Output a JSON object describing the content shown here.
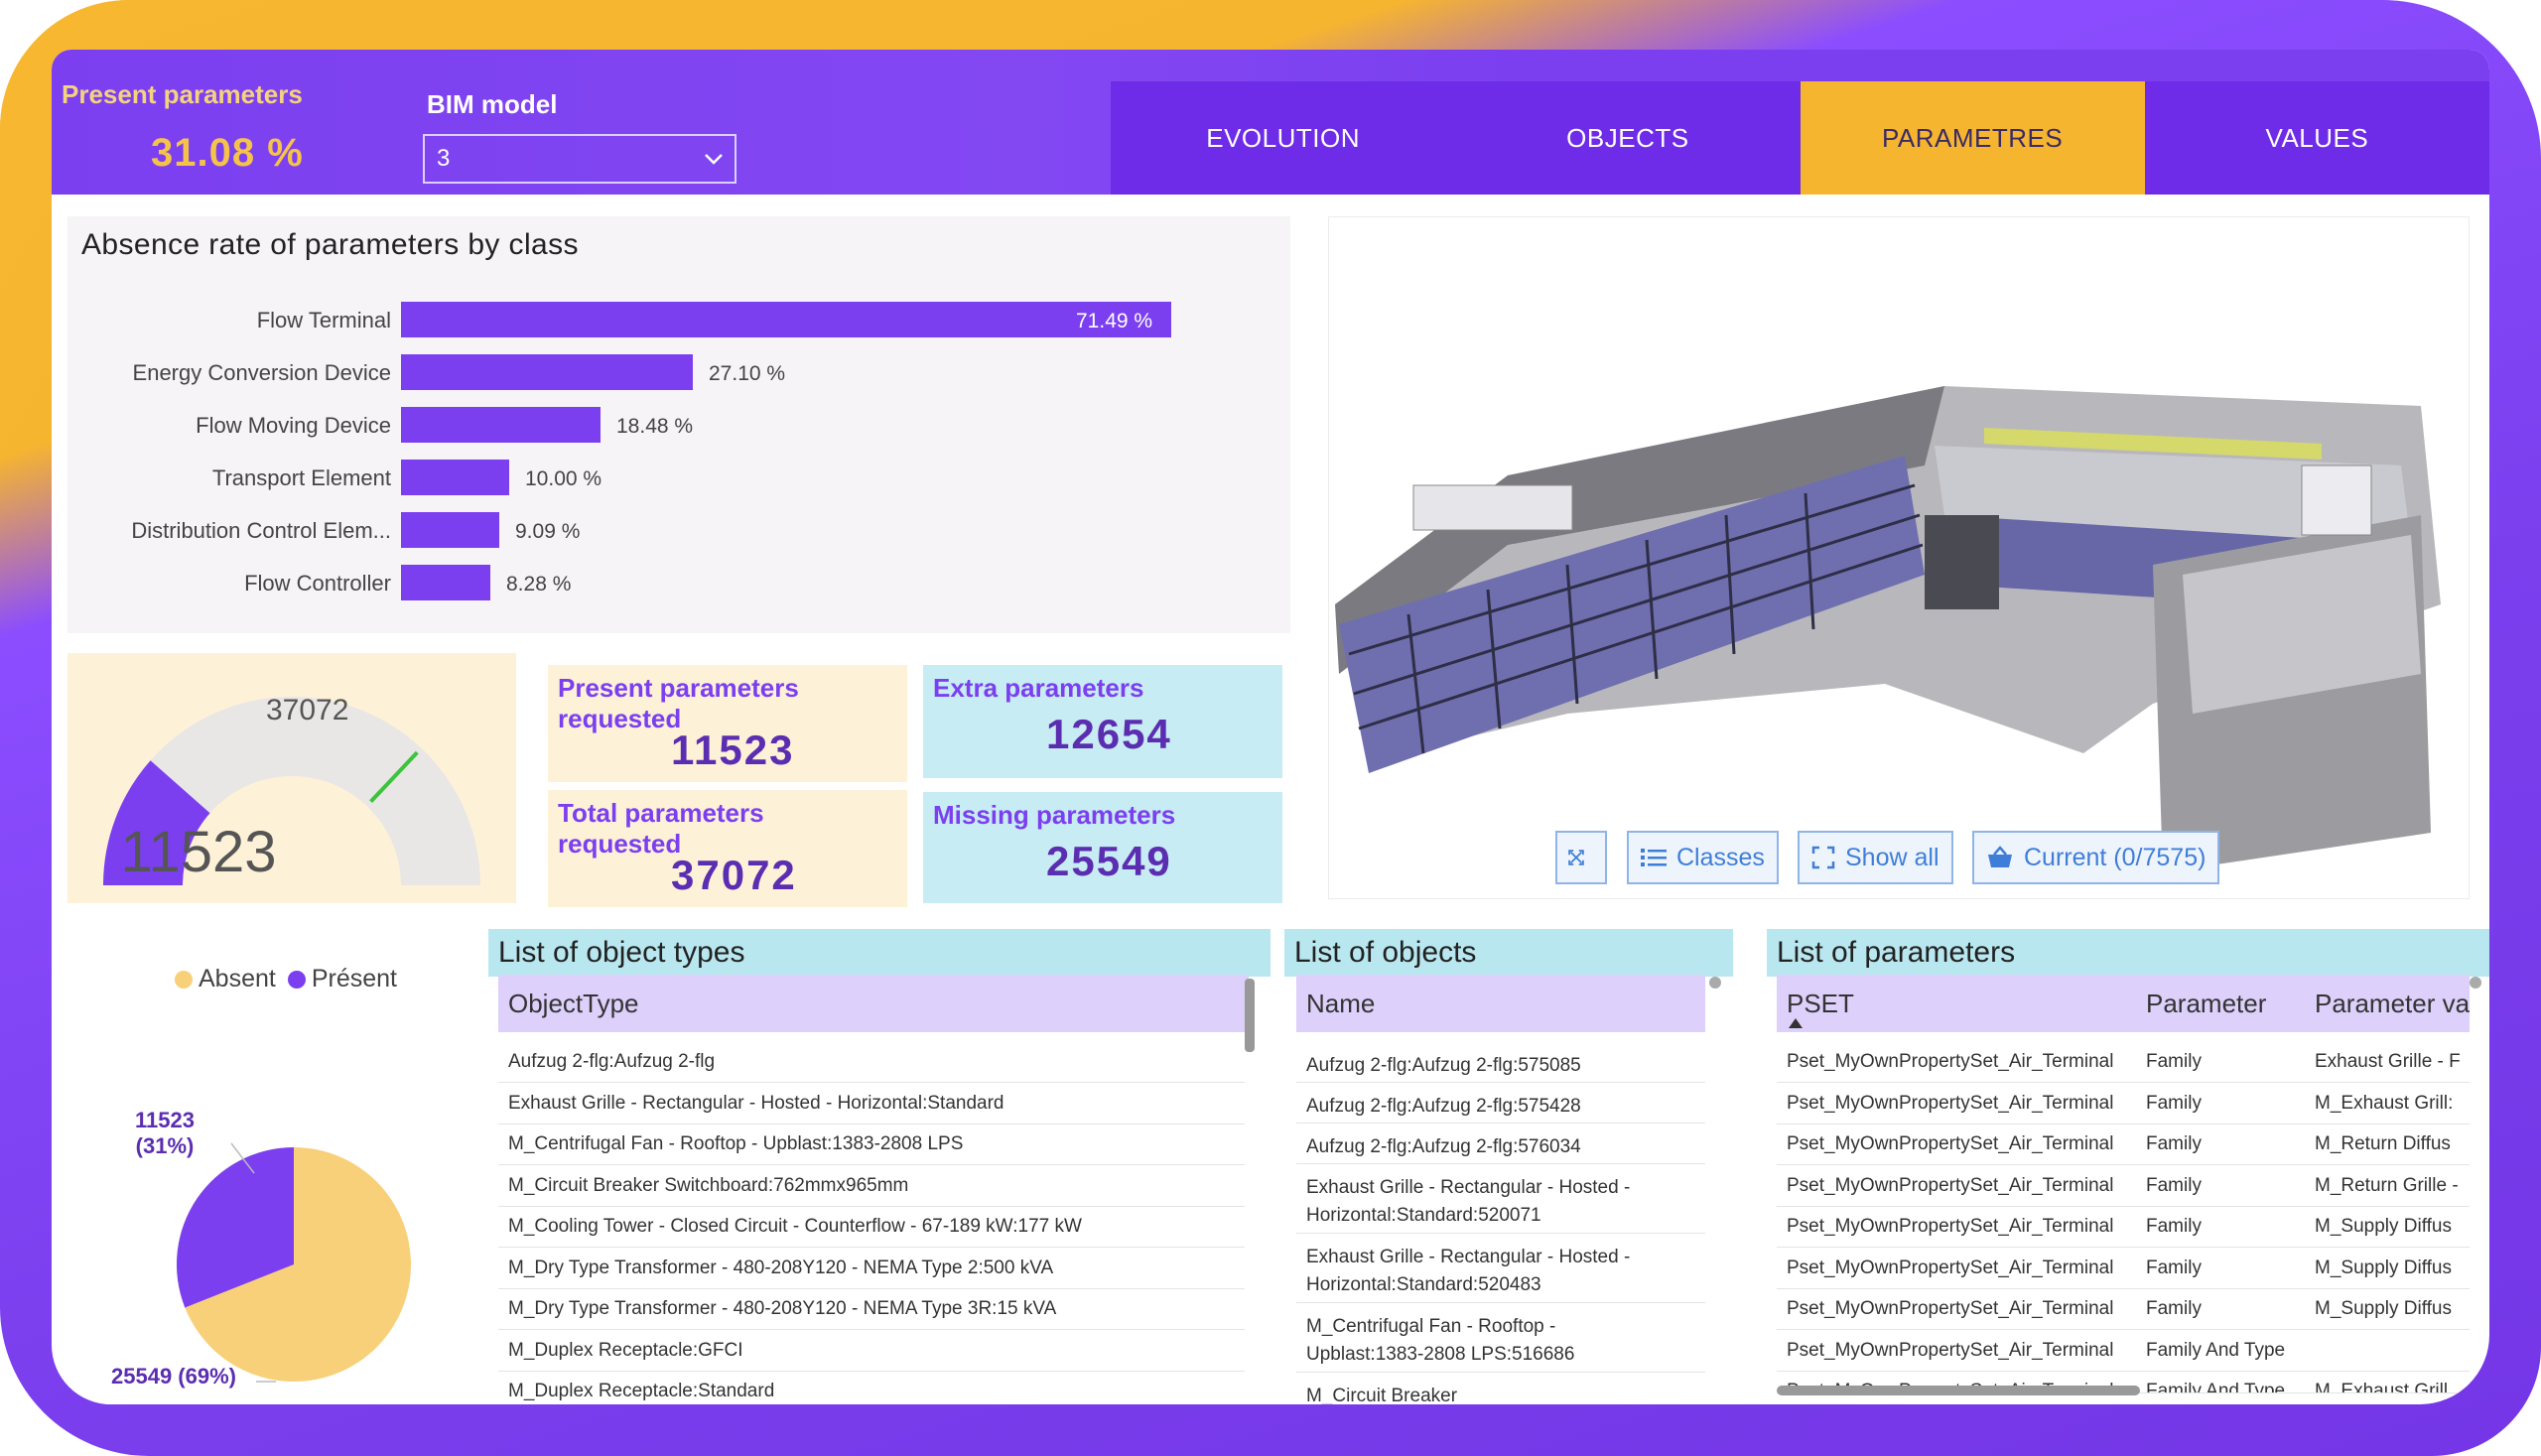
{
  "header": {
    "present_label": "Present parameters",
    "present_value": "31.08 %",
    "bim_label": "BIM model",
    "bim_selected": "3"
  },
  "tabs": [
    {
      "label": "EVOLUTION",
      "active": false
    },
    {
      "label": "OBJECTS",
      "active": false
    },
    {
      "label": "PARAMETRES",
      "active": true
    },
    {
      "label": "VALUES",
      "active": false
    }
  ],
  "colors": {
    "accent": "#7b3ff0",
    "gold": "#f6b52f",
    "cyan": "#b9e7f0",
    "cream": "#fdf1d8"
  },
  "absence_chart": {
    "title": "Absence rate of parameters by class",
    "chart_data": {
      "type": "bar",
      "categories": [
        "Flow Terminal",
        "Energy Conversion Device",
        "Flow Moving Device",
        "Transport Element",
        "Distribution Control Elem...",
        "Flow Controller"
      ],
      "values": [
        71.49,
        27.1,
        18.48,
        10.0,
        9.09,
        8.28
      ],
      "value_labels": [
        "71.49 %",
        "27.10 %",
        "18.48 %",
        "10.00 %",
        "9.09 %",
        "8.28 %"
      ]
    }
  },
  "gauge": {
    "value": "11523",
    "target": "37072",
    "value_num": 11523,
    "target_num": 37072
  },
  "kpis": {
    "present_requested": {
      "label": "Present parameters requested",
      "value": "11523"
    },
    "total_requested": {
      "label": "Total parameters requested",
      "value": "37072"
    },
    "extra": {
      "label": "Extra parameters",
      "value": "12654"
    },
    "missing": {
      "label": "Missing parameters",
      "value": "25549"
    }
  },
  "pie": {
    "legend": [
      "Absent",
      "Présent"
    ],
    "present_label": "11523",
    "present_pct": "(31%)",
    "absent_label": "25549 (69%)",
    "present_fraction": 0.31
  },
  "viewer": {
    "buttons": [
      "Classes",
      "Show all",
      "Current (0/7575)"
    ]
  },
  "object_types": {
    "title": "List of object types",
    "header": "ObjectType",
    "rows": [
      "Aufzug 2-flg:Aufzug 2-flg",
      "Exhaust Grille - Rectangular - Hosted - Horizontal:Standard",
      "M_Centrifugal Fan - Rooftop - Upblast:1383-2808 LPS",
      "M_Circuit Breaker Switchboard:762mmx965mm",
      "M_Cooling Tower - Closed Circuit - Counterflow - 67-189 kW:177 kW",
      "M_Dry Type Transformer - 480-208Y120 - NEMA Type 2:500 kVA",
      "M_Dry Type Transformer - 480-208Y120 - NEMA Type 3R:15 kVA",
      "M_Duplex Receptacle:GFCI",
      "M_Duplex Receptacle:Standard"
    ]
  },
  "objects": {
    "title": "List of objects",
    "header": "Name",
    "rows": [
      [
        "Aufzug 2-flg:Aufzug 2-flg:575085",
        ""
      ],
      [
        "Aufzug 2-flg:Aufzug 2-flg:575428",
        ""
      ],
      [
        "Aufzug 2-flg:Aufzug 2-flg:576034",
        ""
      ],
      [
        "Exhaust Grille - Rectangular - Hosted -",
        "Horizontal:Standard:520071"
      ],
      [
        "Exhaust Grille - Rectangular - Hosted -",
        "Horizontal:Standard:520483"
      ],
      [
        "M_Centrifugal Fan - Rooftop -",
        "Upblast:1383-2808 LPS:516686"
      ],
      [
        "M_Circuit Breaker",
        ""
      ]
    ]
  },
  "parameters": {
    "title": "List of parameters",
    "headers": [
      "PSET",
      "Parameter",
      "Parameter va"
    ],
    "rows": [
      [
        "Pset_MyOwnPropertySet_Air_Terminal",
        "Family",
        "Exhaust Grille - F"
      ],
      [
        "Pset_MyOwnPropertySet_Air_Terminal",
        "Family",
        "M_Exhaust Grill:"
      ],
      [
        "Pset_MyOwnPropertySet_Air_Terminal",
        "Family",
        "M_Return Diffus"
      ],
      [
        "Pset_MyOwnPropertySet_Air_Terminal",
        "Family",
        "M_Return Grille -"
      ],
      [
        "Pset_MyOwnPropertySet_Air_Terminal",
        "Family",
        "M_Supply Diffus"
      ],
      [
        "Pset_MyOwnPropertySet_Air_Terminal",
        "Family",
        "M_Supply Diffus"
      ],
      [
        "Pset_MyOwnPropertySet_Air_Terminal",
        "Family",
        "M_Supply Diffus"
      ],
      [
        "Pset_MyOwnPropertySet_Air_Terminal",
        "Family And Type",
        ""
      ],
      [
        "Pset_MyOwnPropertySet_Air_Terminal",
        "Family And Type",
        "M_Exhaust Grill"
      ]
    ]
  }
}
